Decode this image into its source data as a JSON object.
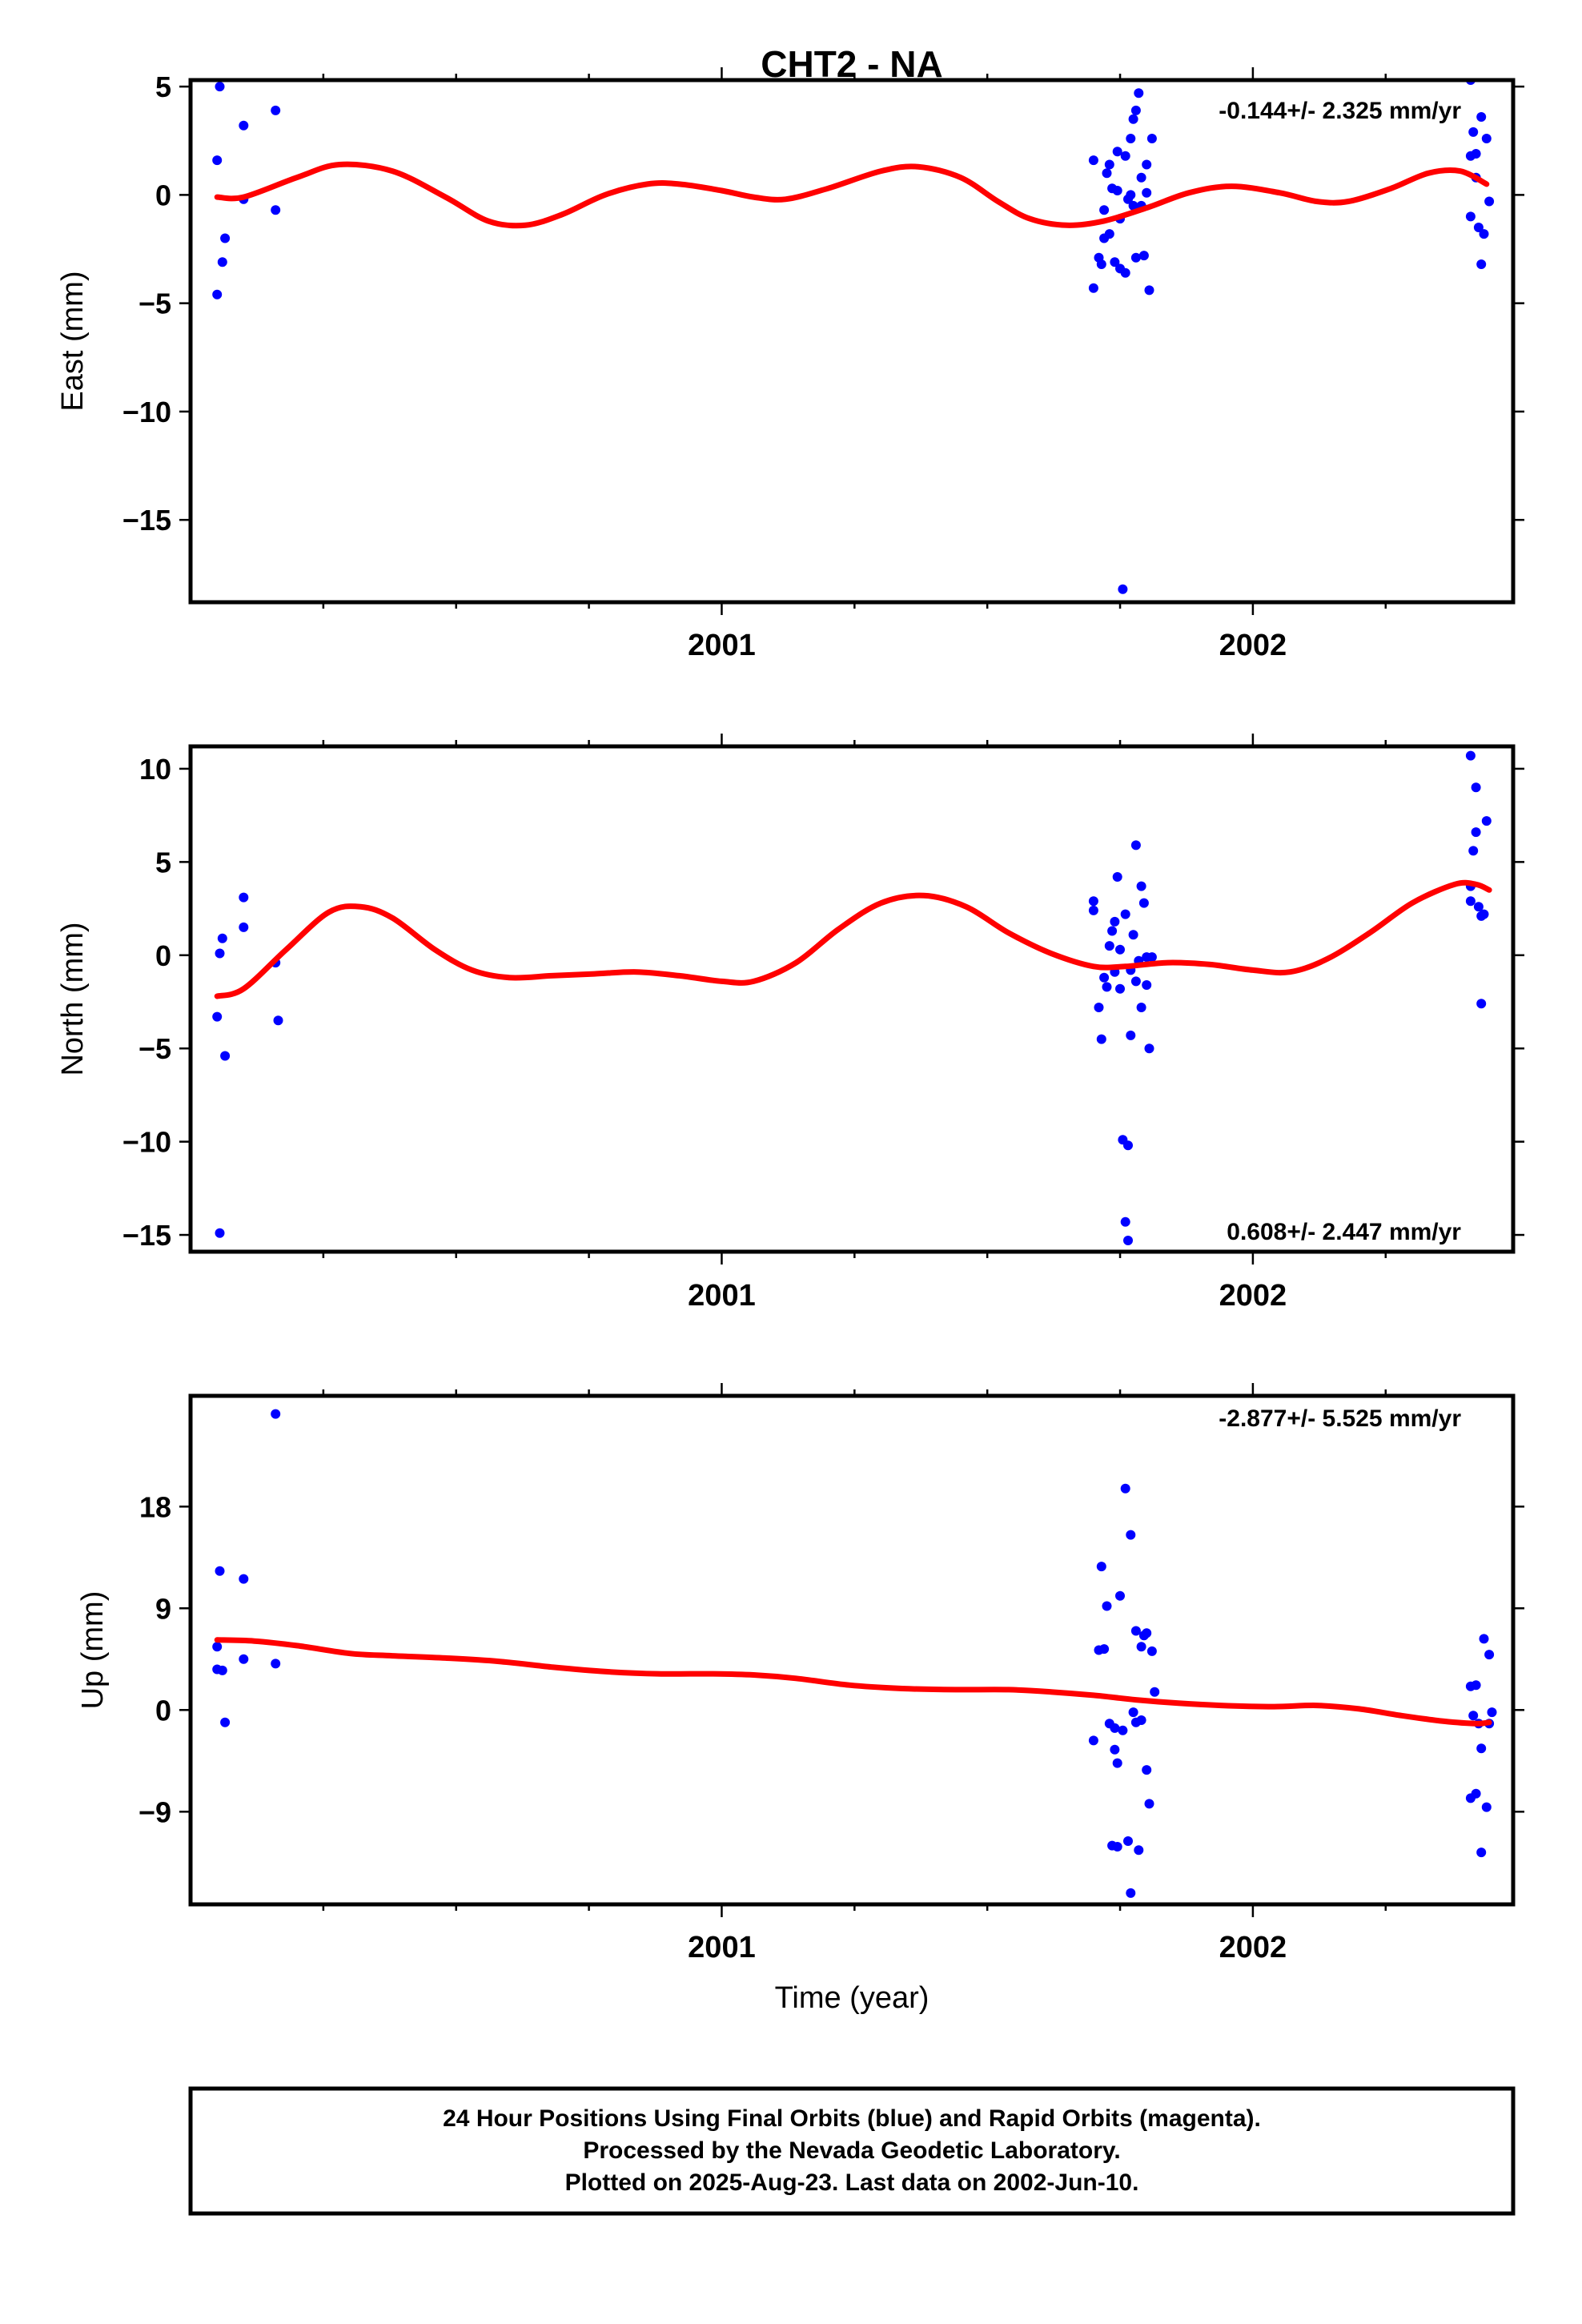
{
  "figure": {
    "title": "CHT2 - NA",
    "xlabel": "Time (year)",
    "colors": {
      "points": "#0000ff",
      "fit": "#ff0000",
      "frame": "#000000"
    },
    "footer": [
      "24 Hour Positions Using Final Orbits (blue) and Rapid Orbits (magenta).",
      "Processed by the Nevada Geodetic Laboratory.",
      "Plotted on 2025-Aug-23. Last data on 2002-Jun-10."
    ]
  },
  "chart_data": [
    {
      "type": "scatter",
      "ylabel": "East (mm)",
      "rate_label": "-0.144+/- 2.325 mm/yr",
      "xlim": [
        2000.0,
        2002.49
      ],
      "ylim": [
        -18.8,
        5.3
      ],
      "yticks": [
        5,
        0,
        -5,
        -10,
        -15
      ],
      "xticks": [
        2001,
        2002
      ],
      "points": [
        [
          2000.05,
          -4.6
        ],
        [
          2000.05,
          1.6
        ],
        [
          2000.055,
          5.0
        ],
        [
          2000.06,
          -3.1
        ],
        [
          2000.065,
          -2.0
        ],
        [
          2000.1,
          -0.2
        ],
        [
          2000.1,
          3.2
        ],
        [
          2000.16,
          3.9
        ],
        [
          2000.16,
          -0.7
        ],
        [
          2001.7,
          1.6
        ],
        [
          2001.7,
          -4.3
        ],
        [
          2001.71,
          -2.9
        ],
        [
          2001.715,
          -3.2
        ],
        [
          2001.72,
          -2.0
        ],
        [
          2001.72,
          -0.7
        ],
        [
          2001.725,
          1.0
        ],
        [
          2001.73,
          -1.8
        ],
        [
          2001.73,
          1.4
        ],
        [
          2001.735,
          0.3
        ],
        [
          2001.74,
          -3.1
        ],
        [
          2001.745,
          2.0
        ],
        [
          2001.745,
          0.2
        ],
        [
          2001.75,
          -1.1
        ],
        [
          2001.75,
          -3.4
        ],
        [
          2001.755,
          -18.2
        ],
        [
          2001.76,
          1.8
        ],
        [
          2001.76,
          -3.6
        ],
        [
          2001.765,
          -0.2
        ],
        [
          2001.77,
          2.6
        ],
        [
          2001.77,
          0.0
        ],
        [
          2001.775,
          3.5
        ],
        [
          2001.775,
          -0.5
        ],
        [
          2001.78,
          3.9
        ],
        [
          2001.78,
          -2.9
        ],
        [
          2001.785,
          4.7
        ],
        [
          2001.79,
          -0.5
        ],
        [
          2001.79,
          0.8
        ],
        [
          2001.795,
          -2.8
        ],
        [
          2001.8,
          1.4
        ],
        [
          2001.8,
          0.1
        ],
        [
          2001.805,
          -4.4
        ],
        [
          2001.81,
          2.6
        ],
        [
          2002.41,
          5.3
        ],
        [
          2002.41,
          1.8
        ],
        [
          2002.41,
          -1.0
        ],
        [
          2002.415,
          2.9
        ],
        [
          2002.42,
          0.8
        ],
        [
          2002.42,
          1.9
        ],
        [
          2002.425,
          -1.5
        ],
        [
          2002.43,
          3.6
        ],
        [
          2002.43,
          -3.2
        ],
        [
          2002.435,
          -1.8
        ],
        [
          2002.44,
          2.6
        ],
        [
          2002.445,
          -0.3
        ]
      ],
      "fit": [
        [
          2000.05,
          -0.1
        ],
        [
          2000.1,
          -0.1
        ],
        [
          2000.2,
          0.8
        ],
        [
          2000.28,
          1.4
        ],
        [
          2000.38,
          1.1
        ],
        [
          2000.48,
          -0.1
        ],
        [
          2000.56,
          -1.2
        ],
        [
          2000.63,
          -1.4
        ],
        [
          2000.7,
          -0.9
        ],
        [
          2000.78,
          0.0
        ],
        [
          2000.86,
          0.5
        ],
        [
          2000.92,
          0.5
        ],
        [
          2001.0,
          0.2
        ],
        [
          2001.06,
          -0.1
        ],
        [
          2001.12,
          -0.2
        ],
        [
          2001.2,
          0.3
        ],
        [
          2001.3,
          1.1
        ],
        [
          2001.37,
          1.3
        ],
        [
          2001.45,
          0.8
        ],
        [
          2001.52,
          -0.3
        ],
        [
          2001.58,
          -1.1
        ],
        [
          2001.65,
          -1.4
        ],
        [
          2001.72,
          -1.2
        ],
        [
          2001.8,
          -0.6
        ],
        [
          2001.88,
          0.1
        ],
        [
          2001.96,
          0.4
        ],
        [
          2002.05,
          0.1
        ],
        [
          2002.12,
          -0.3
        ],
        [
          2002.18,
          -0.3
        ],
        [
          2002.26,
          0.3
        ],
        [
          2002.33,
          1.0
        ],
        [
          2002.39,
          1.1
        ],
        [
          2002.44,
          0.5
        ]
      ]
    },
    {
      "type": "scatter",
      "ylabel": "North (mm)",
      "rate_label": "0.608+/- 2.447 mm/yr",
      "xlim": [
        2000.0,
        2002.49
      ],
      "ylim": [
        -15.9,
        11.2
      ],
      "yticks": [
        10,
        5,
        0,
        -5,
        -10,
        -15
      ],
      "xticks": [
        2001,
        2002
      ],
      "points": [
        [
          2000.05,
          -3.3
        ],
        [
          2000.055,
          0.1
        ],
        [
          2000.06,
          0.9
        ],
        [
          2000.065,
          -5.4
        ],
        [
          2000.055,
          -14.9
        ],
        [
          2000.1,
          3.1
        ],
        [
          2000.1,
          1.5
        ],
        [
          2000.16,
          -0.4
        ],
        [
          2000.165,
          -3.5
        ],
        [
          2001.7,
          2.9
        ],
        [
          2001.7,
          2.4
        ],
        [
          2001.71,
          -2.8
        ],
        [
          2001.715,
          -4.5
        ],
        [
          2001.72,
          -1.2
        ],
        [
          2001.725,
          -1.7
        ],
        [
          2001.73,
          0.5
        ],
        [
          2001.735,
          1.3
        ],
        [
          2001.74,
          1.8
        ],
        [
          2001.74,
          -0.9
        ],
        [
          2001.745,
          4.2
        ],
        [
          2001.75,
          0.3
        ],
        [
          2001.75,
          -1.8
        ],
        [
          2001.755,
          -9.9
        ],
        [
          2001.76,
          -14.3
        ],
        [
          2001.76,
          2.2
        ],
        [
          2001.765,
          -10.2
        ],
        [
          2001.765,
          -15.3
        ],
        [
          2001.77,
          -0.8
        ],
        [
          2001.77,
          -4.3
        ],
        [
          2001.775,
          1.1
        ],
        [
          2001.78,
          -1.4
        ],
        [
          2001.78,
          5.9
        ],
        [
          2001.785,
          -0.3
        ],
        [
          2001.79,
          3.7
        ],
        [
          2001.79,
          -2.8
        ],
        [
          2001.795,
          2.8
        ],
        [
          2001.8,
          -1.6
        ],
        [
          2001.8,
          -0.1
        ],
        [
          2001.805,
          -5.0
        ],
        [
          2001.81,
          -0.1
        ],
        [
          2002.41,
          10.7
        ],
        [
          2002.41,
          3.7
        ],
        [
          2002.41,
          2.9
        ],
        [
          2002.415,
          5.6
        ],
        [
          2002.42,
          6.6
        ],
        [
          2002.42,
          9.0
        ],
        [
          2002.425,
          2.6
        ],
        [
          2002.43,
          -2.6
        ],
        [
          2002.43,
          2.1
        ],
        [
          2002.435,
          2.2
        ],
        [
          2002.44,
          7.2
        ]
      ],
      "fit": [
        [
          2000.05,
          -2.2
        ],
        [
          2000.1,
          -1.8
        ],
        [
          2000.18,
          0.3
        ],
        [
          2000.26,
          2.3
        ],
        [
          2000.32,
          2.6
        ],
        [
          2000.38,
          2.0
        ],
        [
          2000.46,
          0.3
        ],
        [
          2000.53,
          -0.8
        ],
        [
          2000.6,
          -1.2
        ],
        [
          2000.68,
          -1.1
        ],
        [
          2000.76,
          -1.0
        ],
        [
          2000.84,
          -0.9
        ],
        [
          2000.92,
          -1.1
        ],
        [
          2001.0,
          -1.4
        ],
        [
          2001.06,
          -1.4
        ],
        [
          2001.14,
          -0.4
        ],
        [
          2001.22,
          1.4
        ],
        [
          2001.3,
          2.8
        ],
        [
          2001.38,
          3.2
        ],
        [
          2001.46,
          2.6
        ],
        [
          2001.54,
          1.2
        ],
        [
          2001.62,
          0.1
        ],
        [
          2001.7,
          -0.6
        ],
        [
          2001.76,
          -0.6
        ],
        [
          2001.84,
          -0.4
        ],
        [
          2001.92,
          -0.5
        ],
        [
          2002.0,
          -0.8
        ],
        [
          2002.07,
          -0.9
        ],
        [
          2002.14,
          -0.2
        ],
        [
          2002.22,
          1.2
        ],
        [
          2002.3,
          2.8
        ],
        [
          2002.38,
          3.8
        ],
        [
          2002.42,
          3.8
        ],
        [
          2002.445,
          3.5
        ]
      ]
    },
    {
      "type": "scatter",
      "ylabel": "Up (mm)",
      "rate_label": "-2.877+/- 5.525 mm/yr",
      "xlim": [
        2000.0,
        2002.49
      ],
      "ylim": [
        -17.2,
        27.8
      ],
      "yticks": [
        18,
        9,
        0,
        -9
      ],
      "xticks": [
        2001,
        2002
      ],
      "points": [
        [
          2000.05,
          5.6
        ],
        [
          2000.05,
          3.6
        ],
        [
          2000.055,
          12.3
        ],
        [
          2000.06,
          3.5
        ],
        [
          2000.065,
          -1.1
        ],
        [
          2000.1,
          11.6
        ],
        [
          2000.1,
          4.5
        ],
        [
          2000.16,
          26.2
        ],
        [
          2000.16,
          4.1
        ],
        [
          2001.7,
          -2.7
        ],
        [
          2001.71,
          5.3
        ],
        [
          2001.715,
          12.7
        ],
        [
          2001.72,
          5.4
        ],
        [
          2001.725,
          9.2
        ],
        [
          2001.73,
          -1.2
        ],
        [
          2001.735,
          -12.0
        ],
        [
          2001.74,
          -1.6
        ],
        [
          2001.74,
          -3.5
        ],
        [
          2001.745,
          -12.1
        ],
        [
          2001.745,
          -4.7
        ],
        [
          2001.75,
          10.1
        ],
        [
          2001.755,
          -1.8
        ],
        [
          2001.76,
          19.6
        ],
        [
          2001.765,
          -11.6
        ],
        [
          2001.77,
          -16.2
        ],
        [
          2001.77,
          15.5
        ],
        [
          2001.775,
          -0.2
        ],
        [
          2001.78,
          7.0
        ],
        [
          2001.78,
          -1.1
        ],
        [
          2001.785,
          -12.4
        ],
        [
          2001.79,
          5.6
        ],
        [
          2001.79,
          -0.9
        ],
        [
          2001.795,
          6.6
        ],
        [
          2001.8,
          -5.3
        ],
        [
          2001.8,
          6.8
        ],
        [
          2001.805,
          -8.3
        ],
        [
          2001.81,
          5.2
        ],
        [
          2001.815,
          1.6
        ],
        [
          2002.41,
          2.1
        ],
        [
          2002.41,
          -7.8
        ],
        [
          2002.415,
          -0.5
        ],
        [
          2002.42,
          -7.4
        ],
        [
          2002.42,
          2.2
        ],
        [
          2002.425,
          -1.2
        ],
        [
          2002.43,
          -12.6
        ],
        [
          2002.43,
          -3.4
        ],
        [
          2002.435,
          6.3
        ],
        [
          2002.44,
          -8.6
        ],
        [
          2002.445,
          -1.2
        ],
        [
          2002.445,
          4.9
        ],
        [
          2002.45,
          -0.2
        ]
      ],
      "fit": [
        [
          2000.05,
          6.2
        ],
        [
          2000.12,
          6.1
        ],
        [
          2000.2,
          5.7
        ],
        [
          2000.3,
          5.0
        ],
        [
          2000.38,
          4.8
        ],
        [
          2000.48,
          4.6
        ],
        [
          2000.58,
          4.3
        ],
        [
          2000.68,
          3.8
        ],
        [
          2000.78,
          3.4
        ],
        [
          2000.88,
          3.2
        ],
        [
          2000.98,
          3.2
        ],
        [
          2001.06,
          3.1
        ],
        [
          2001.14,
          2.8
        ],
        [
          2001.24,
          2.2
        ],
        [
          2001.34,
          1.9
        ],
        [
          2001.44,
          1.8
        ],
        [
          2001.54,
          1.8
        ],
        [
          2001.62,
          1.6
        ],
        [
          2001.7,
          1.3
        ],
        [
          2001.78,
          0.9
        ],
        [
          2001.86,
          0.6
        ],
        [
          2001.94,
          0.4
        ],
        [
          2002.04,
          0.3
        ],
        [
          2002.12,
          0.4
        ],
        [
          2002.2,
          0.1
        ],
        [
          2002.28,
          -0.5
        ],
        [
          2002.36,
          -1.0
        ],
        [
          2002.42,
          -1.2
        ],
        [
          2002.445,
          -1.1
        ]
      ]
    }
  ]
}
